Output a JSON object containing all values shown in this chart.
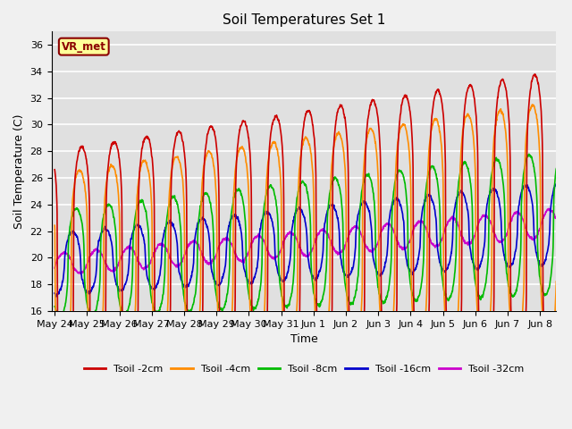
{
  "title": "Soil Temperatures Set 1",
  "xlabel": "Time",
  "ylabel": "Soil Temperature (C)",
  "ylim": [
    16,
    37
  ],
  "yticks": [
    16,
    18,
    20,
    22,
    24,
    26,
    28,
    30,
    32,
    34,
    36
  ],
  "annotation_text": "VR_met",
  "legend_labels": [
    "Tsoil -2cm",
    "Tsoil -4cm",
    "Tsoil -8cm",
    "Tsoil -16cm",
    "Tsoil -32cm"
  ],
  "line_colors": [
    "#cc0000",
    "#ff8c00",
    "#00bb00",
    "#0000cc",
    "#cc00cc"
  ],
  "bg_color": "#e8e8e8",
  "n_days": 15.5,
  "points_per_day": 144,
  "base_temp": 19.5,
  "trend": 0.2,
  "amplitudes": [
    8.5,
    6.8,
    4.0,
    2.3,
    0.8
  ],
  "phase_delays": [
    0.0,
    0.07,
    0.17,
    0.28,
    0.55
  ],
  "sharpness": [
    4.0,
    3.5,
    2.5,
    2.0,
    1.2
  ],
  "x_tick_labels": [
    "May 24",
    "May 25",
    "May 26",
    "May 27",
    "May 28",
    "May 29",
    "May 30",
    "May 31",
    "Jun 1",
    "Jun 2",
    "Jun 3",
    "Jun 4",
    "Jun 5",
    "Jun 6",
    "Jun 7",
    "Jun 8"
  ],
  "x_tick_positions": [
    0,
    1,
    2,
    3,
    4,
    5,
    6,
    7,
    8,
    9,
    10,
    11,
    12,
    13,
    14,
    15
  ]
}
